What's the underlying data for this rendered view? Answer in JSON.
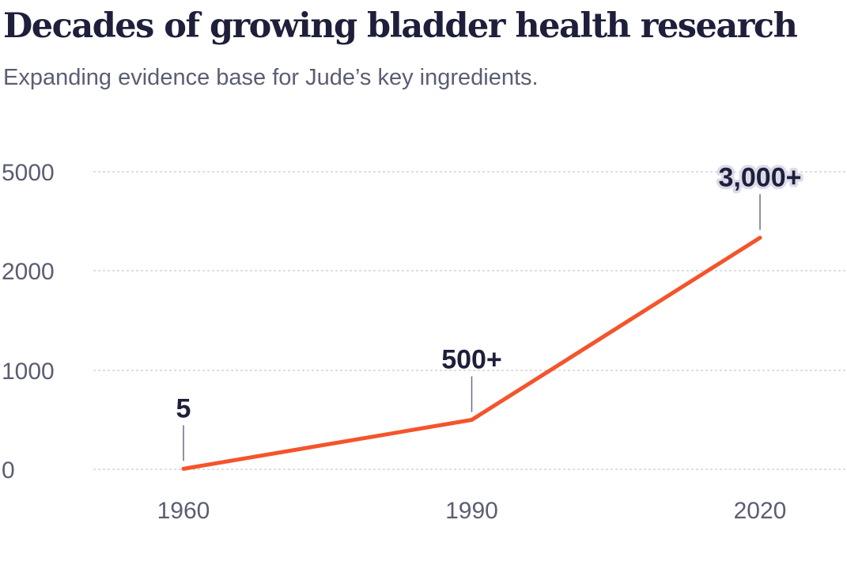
{
  "title": "Decades of growing bladder health research",
  "subtitle": "Expanding evidence base for Jude’s key ingredients.",
  "chart_data": {
    "type": "line",
    "title": "Decades of growing bladder health research",
    "subtitle": "Expanding evidence base for Jude’s key ingredients.",
    "x": [
      1960,
      1990,
      2020
    ],
    "x_tick_labels": [
      "1960",
      "1990",
      "2020"
    ],
    "y_tick_labels": [
      "0",
      "1000",
      "2000",
      "5000"
    ],
    "series": [
      {
        "values": [
          5,
          500,
          3000
        ],
        "data_labels": [
          "5",
          "500+",
          "3,000+"
        ],
        "color": "#f4542c"
      }
    ],
    "y_scale": "non-linear (ticks 0, 1000, 2000, 5000 equally spaced)",
    "grid": "horizontal dashed",
    "legend": "none"
  }
}
